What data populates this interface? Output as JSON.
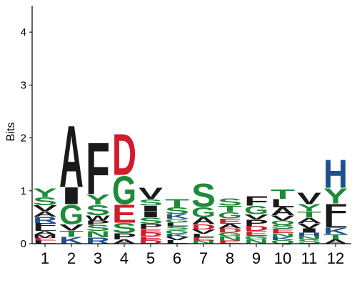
{
  "chart_data": {
    "type": "sequence-logo",
    "ylabel": "Bits",
    "ylim": [
      0,
      4.5
    ],
    "yticks": [
      0,
      1,
      2,
      3,
      4
    ],
    "positions": [
      "1",
      "2",
      "3",
      "4",
      "5",
      "6",
      "7",
      "8",
      "9",
      "10",
      "11",
      "12"
    ],
    "colors": {
      "A": "#1a1a1a",
      "F": "#1a1a1a",
      "V": "#1a1a1a",
      "I": "#1a1a1a",
      "L": "#1a1a1a",
      "M": "#1a1a1a",
      "P": "#1a1a1a",
      "W": "#1a1a1a",
      "S": "#1e8b3a",
      "G": "#1e8b3a",
      "T": "#1e8b3a",
      "Y": "#1e8b3a",
      "N": "#1e8b3a",
      "Q": "#1e8b3a",
      "C": "#1e8b3a",
      "D": "#d01c2c",
      "E": "#d01c2c",
      "K": "#1f4f8f",
      "R": "#1f4f8f",
      "H": "#1f4f8f"
    },
    "columns": [
      {
        "position": "1",
        "letters": [
          [
            "L",
            0.06
          ],
          [
            "E",
            0.05
          ],
          [
            "M",
            0.06
          ],
          [
            "A",
            0.07
          ],
          [
            "L",
            0.07
          ],
          [
            "F",
            0.08
          ],
          [
            "R",
            0.12
          ],
          [
            "A",
            0.1
          ],
          [
            "V",
            0.12
          ],
          [
            "S",
            0.15
          ],
          [
            "Y",
            0.17
          ]
        ]
      },
      {
        "position": "2",
        "letters": [
          [
            "K",
            0.13
          ],
          [
            "T",
            0.12
          ],
          [
            "V",
            0.12
          ],
          [
            "G",
            0.38
          ],
          [
            "I",
            0.33
          ],
          [
            "A",
            1.2
          ]
        ]
      },
      {
        "position": "3",
        "letters": [
          [
            "R",
            0.12
          ],
          [
            "N",
            0.12
          ],
          [
            "S",
            0.12
          ],
          [
            "P",
            0.08
          ],
          [
            "W",
            0.1
          ],
          [
            "S",
            0.2
          ],
          [
            "Y",
            0.2
          ],
          [
            "F",
            1.0
          ]
        ]
      },
      {
        "position": "4",
        "letters": [
          [
            "A",
            0.08
          ],
          [
            "P",
            0.12
          ],
          [
            "S",
            0.2
          ],
          [
            "E",
            0.35
          ],
          [
            "G",
            0.55
          ],
          [
            "D",
            0.8
          ]
        ]
      },
      {
        "position": "5",
        "letters": [
          [
            "D",
            0.07
          ],
          [
            "E",
            0.07
          ],
          [
            "D",
            0.07
          ],
          [
            "E",
            0.07
          ],
          [
            "P",
            0.1
          ],
          [
            "S",
            0.12
          ],
          [
            "I",
            0.12
          ],
          [
            "I",
            0.1
          ],
          [
            "S",
            0.12
          ],
          [
            "V",
            0.22
          ]
        ]
      },
      {
        "position": "6",
        "letters": [
          [
            "L",
            0.07
          ],
          [
            "V",
            0.06
          ],
          [
            "K",
            0.06
          ],
          [
            "G",
            0.07
          ],
          [
            "S",
            0.07
          ],
          [
            "L",
            0.07
          ],
          [
            "G",
            0.07
          ],
          [
            "K",
            0.09
          ],
          [
            "S",
            0.13
          ],
          [
            "T",
            0.16
          ]
        ]
      },
      {
        "position": "7",
        "letters": [
          [
            "N",
            0.06
          ],
          [
            "E",
            0.06
          ],
          [
            "L",
            0.07
          ],
          [
            "V",
            0.08
          ],
          [
            "D",
            0.1
          ],
          [
            "A",
            0.13
          ],
          [
            "G",
            0.2
          ],
          [
            "S",
            0.45
          ]
        ]
      },
      {
        "position": "8",
        "letters": [
          [
            "E",
            0.06
          ],
          [
            "N",
            0.08
          ],
          [
            "G",
            0.07
          ],
          [
            "D",
            0.08
          ],
          [
            "A",
            0.09
          ],
          [
            "E",
            0.1
          ],
          [
            "G",
            0.12
          ],
          [
            "T",
            0.12
          ],
          [
            "S",
            0.14
          ]
        ]
      },
      {
        "position": "9",
        "letters": [
          [
            "N",
            0.08
          ],
          [
            "G",
            0.07
          ],
          [
            "E",
            0.09
          ],
          [
            "D",
            0.1
          ],
          [
            "P",
            0.12
          ],
          [
            "V",
            0.1
          ],
          [
            "G",
            0.16
          ],
          [
            "F",
            0.18
          ]
        ]
      },
      {
        "position": "10",
        "letters": [
          [
            "Q",
            0.07
          ],
          [
            "K",
            0.06
          ],
          [
            "N",
            0.07
          ],
          [
            "E",
            0.08
          ],
          [
            "S",
            0.08
          ],
          [
            "Q",
            0.08
          ],
          [
            "V",
            0.1
          ],
          [
            "A",
            0.15
          ],
          [
            "L",
            0.16
          ],
          [
            "T",
            0.18
          ]
        ]
      },
      {
        "position": "11",
        "letters": [
          [
            "S",
            0.08
          ],
          [
            "N",
            0.06
          ],
          [
            "H",
            0.07
          ],
          [
            "I",
            0.08
          ],
          [
            "V",
            0.1
          ],
          [
            "A",
            0.1
          ],
          [
            "T",
            0.12
          ],
          [
            "Y",
            0.14
          ],
          [
            "V",
            0.22
          ]
        ]
      },
      {
        "position": "12",
        "letters": [
          [
            "A",
            0.08
          ],
          [
            "T",
            0.1
          ],
          [
            "K",
            0.12
          ],
          [
            "L",
            0.18
          ],
          [
            "F",
            0.28
          ],
          [
            "Y",
            0.3
          ],
          [
            "H",
            0.55
          ]
        ]
      }
    ]
  }
}
